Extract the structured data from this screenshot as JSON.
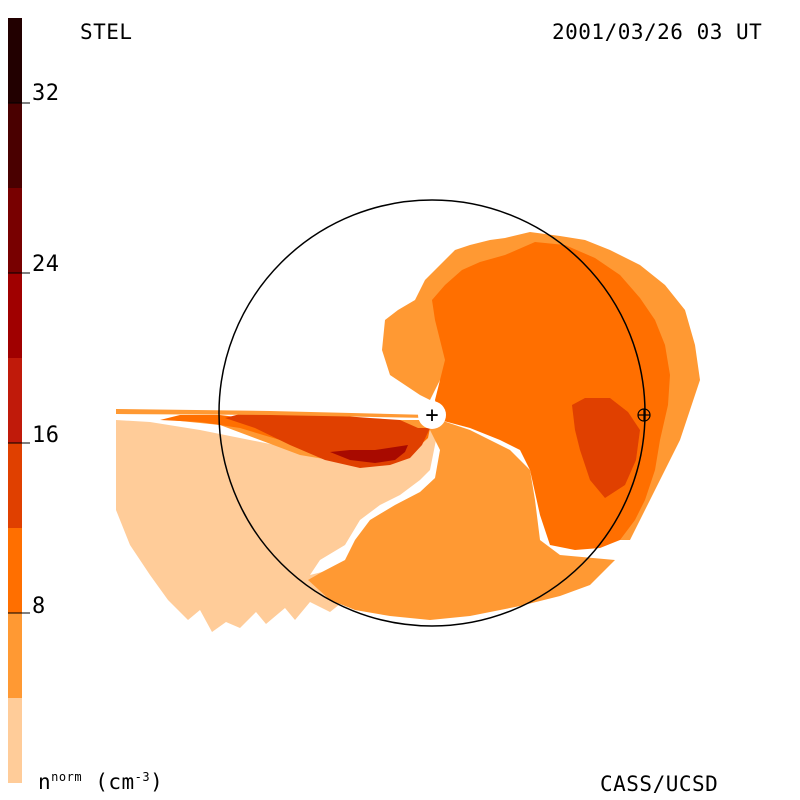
{
  "header": {
    "instrument": "STEL",
    "timestamp": "2001/03/26 03 UT"
  },
  "footer": {
    "units_symbol": "n",
    "units_superscript": "norm",
    "units_text": "(cm",
    "units_exponent": "-3",
    "units_close": ")",
    "credit": "CASS/UCSD"
  },
  "colorbar": {
    "tick_labels": [
      "32",
      "24",
      "16",
      "8"
    ],
    "bands": [
      {
        "range": [
          0,
          4
        ],
        "color": "#ffcc99"
      },
      {
        "range": [
          4,
          8
        ],
        "color": "#ff9933"
      },
      {
        "range": [
          8,
          12
        ],
        "color": "#ff6f00"
      },
      {
        "range": [
          12,
          16
        ],
        "color": "#e04000"
      },
      {
        "range": [
          16,
          20
        ],
        "color": "#c01a0a"
      },
      {
        "range": [
          20,
          24
        ],
        "color": "#a00000"
      },
      {
        "range": [
          24,
          28
        ],
        "color": "#780000"
      },
      {
        "range": [
          28,
          32
        ],
        "color": "#4a0000"
      },
      {
        "range": [
          32,
          36
        ],
        "color": "#220000"
      }
    ]
  },
  "markers": {
    "sun": "+",
    "earth": "⊕"
  },
  "icons": [
    "sun-icon",
    "earth-icon"
  ]
}
